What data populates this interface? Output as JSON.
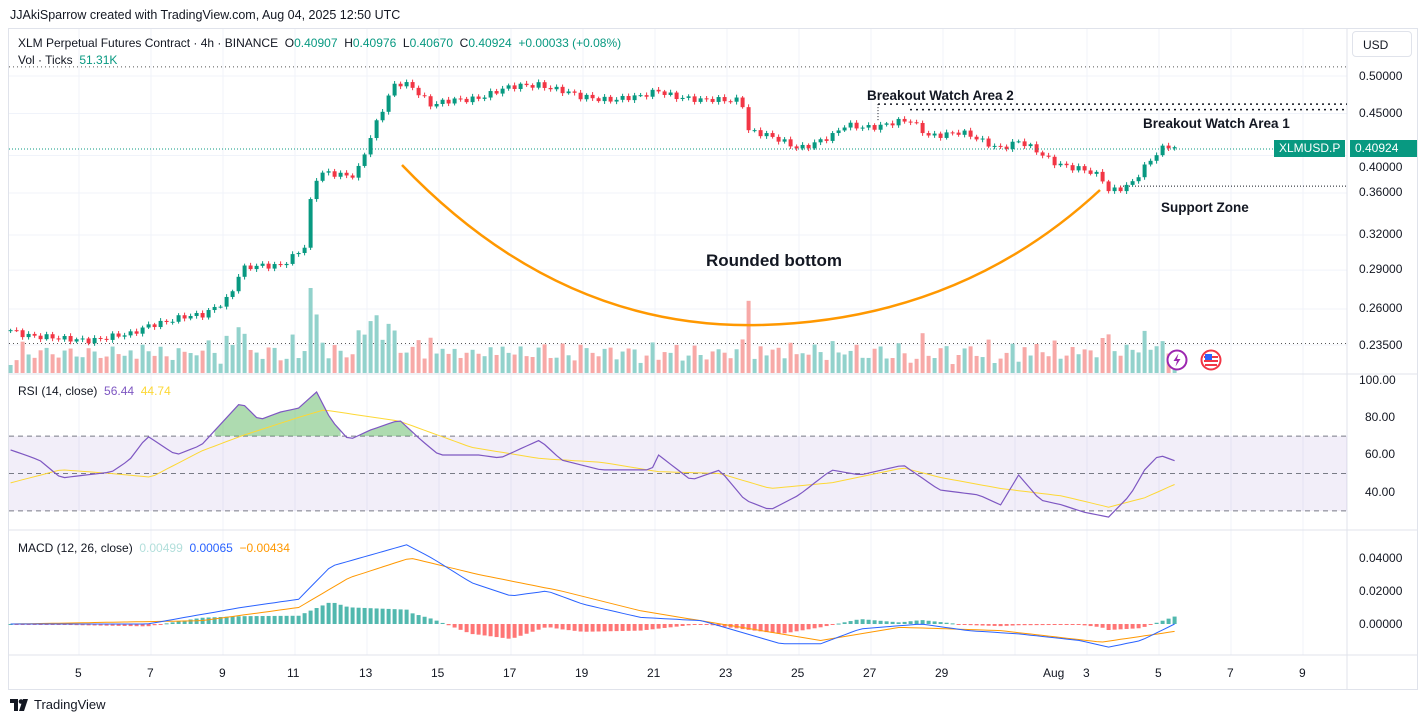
{
  "credit": "JJAkiSparrow created with TradingView.com, Aug 04, 2025 12:50 UTC",
  "legend": {
    "symbol": "XLM Perpetual Futures Contract · 4h · BINANCE",
    "o_label": "O",
    "o": "0.40907",
    "h_label": "H",
    "h": "0.40976",
    "l_label": "L",
    "l": "0.40670",
    "c_label": "C",
    "c": "0.40924",
    "change": "+0.00033 (+0.08%)",
    "vol_label": "Vol · Ticks",
    "vol": "51.31K"
  },
  "currency": "USD",
  "price_axis": [
    "0.50000",
    "0.45000",
    "0.40000",
    "0.36000",
    "0.32000",
    "0.29000",
    "0.26000",
    "0.23500"
  ],
  "price_tag": {
    "symbol": "XLMUSD.P",
    "price": "0.40924"
  },
  "annotations": {
    "breakout2": "Breakout Watch Area 2",
    "breakout1": "Breakout Watch Area 1",
    "support": "Support Zone",
    "pattern": "Rounded bottom"
  },
  "rsi": {
    "label": "RSI (14, close)",
    "value": "56.44",
    "ma": "44.74",
    "axis": [
      "100.00",
      "80.00",
      "60.00",
      "40.00"
    ]
  },
  "macd": {
    "label": "MACD (12, 26, close)",
    "hist": "0.00499",
    "macd": "0.00065",
    "signal": "−0.00434",
    "axis": [
      "0.04000",
      "0.02000",
      "0.00000"
    ]
  },
  "time_axis": [
    "5",
    "7",
    "9",
    "11",
    "13",
    "15",
    "17",
    "19",
    "21",
    "23",
    "25",
    "27",
    "29",
    "Aug",
    "3",
    "5",
    "7",
    "9"
  ],
  "brand": "TradingView",
  "colors": {
    "up": "#089981",
    "down": "#f23645",
    "rsi": "#7e57c2",
    "rsi_ma": "#fdd835",
    "macd": "#2962ff",
    "signal": "#ff9800",
    "curve": "#ff9800"
  },
  "chart_data": {
    "type": "candlestick",
    "x_unit": "day (July; 32 = Aug 1)",
    "price_keypoints": [
      [
        3.1,
        0.245
      ],
      [
        4.5,
        0.238
      ],
      [
        6.4,
        0.241
      ],
      [
        7.0,
        0.25
      ],
      [
        8.4,
        0.255
      ],
      [
        9.2,
        0.27
      ],
      [
        9.5,
        0.29
      ],
      [
        10.6,
        0.295
      ],
      [
        11.3,
        0.31
      ],
      [
        11.5,
        0.37
      ],
      [
        11.8,
        0.38
      ],
      [
        12.7,
        0.38
      ],
      [
        13.1,
        0.42
      ],
      [
        13.5,
        0.46
      ],
      [
        13.8,
        0.49
      ],
      [
        14.2,
        0.49
      ],
      [
        14.8,
        0.46
      ],
      [
        15.9,
        0.47
      ],
      [
        16.7,
        0.48
      ],
      [
        17.8,
        0.49
      ],
      [
        18.4,
        0.48
      ],
      [
        18.9,
        0.47
      ],
      [
        20.6,
        0.47
      ],
      [
        21.1,
        0.48
      ],
      [
        22.3,
        0.465
      ],
      [
        23.4,
        0.47
      ],
      [
        23.6,
        0.43
      ],
      [
        24.2,
        0.42
      ],
      [
        25.0,
        0.41
      ],
      [
        25.9,
        0.42
      ],
      [
        26.3,
        0.435
      ],
      [
        27.3,
        0.435
      ],
      [
        28.1,
        0.44
      ],
      [
        28.6,
        0.425
      ],
      [
        29.5,
        0.425
      ],
      [
        30.6,
        0.41
      ],
      [
        31.1,
        0.415
      ],
      [
        32.0,
        0.395
      ],
      [
        32.8,
        0.385
      ],
      [
        33.4,
        0.375
      ],
      [
        33.6,
        0.362
      ],
      [
        34.2,
        0.37
      ],
      [
        34.8,
        0.395
      ],
      [
        35.2,
        0.41
      ],
      [
        35.5,
        0.409
      ]
    ],
    "rsi_keypoints": [
      [
        3.1,
        62.6
      ],
      [
        3.9,
        57.2
      ],
      [
        4.5,
        47.6
      ],
      [
        5.9,
        50.8
      ],
      [
        6.4,
        57.2
      ],
      [
        6.9,
        70
      ],
      [
        7.7,
        59.9
      ],
      [
        8.4,
        65.2
      ],
      [
        9.5,
        88.2
      ],
      [
        10.0,
        78.6
      ],
      [
        10.6,
        82.9
      ],
      [
        11.1,
        85
      ],
      [
        11.6,
        93.6
      ],
      [
        12.0,
        78.6
      ],
      [
        12.5,
        67.9
      ],
      [
        13.1,
        73.3
      ],
      [
        13.9,
        78.6
      ],
      [
        14.5,
        67.9
      ],
      [
        15.0,
        59.9
      ],
      [
        16.1,
        59.9
      ],
      [
        16.7,
        58.3
      ],
      [
        17.8,
        67.9
      ],
      [
        18.4,
        57.2
      ],
      [
        19.5,
        51.9
      ],
      [
        20.9,
        51.9
      ],
      [
        21.1,
        59.9
      ],
      [
        22.0,
        46.5
      ],
      [
        22.8,
        51.9
      ],
      [
        23.5,
        35.8
      ],
      [
        24.2,
        30.5
      ],
      [
        25.0,
        38.5
      ],
      [
        25.9,
        51.9
      ],
      [
        26.7,
        49.2
      ],
      [
        27.9,
        54.5
      ],
      [
        28.9,
        41.2
      ],
      [
        30.0,
        38.5
      ],
      [
        30.6,
        33.2
      ],
      [
        31.1,
        49.2
      ],
      [
        31.7,
        35.8
      ],
      [
        32.3,
        33.2
      ],
      [
        32.9,
        29.4
      ],
      [
        33.6,
        26.7
      ],
      [
        34.2,
        38.5
      ],
      [
        34.6,
        51.9
      ],
      [
        35.0,
        59.9
      ],
      [
        35.5,
        56.4
      ]
    ],
    "rsi_ma_keypoints": [
      [
        3.1,
        45
      ],
      [
        4.5,
        52
      ],
      [
        5.9,
        50
      ],
      [
        7.0,
        48
      ],
      [
        8.4,
        62
      ],
      [
        9.5,
        70
      ],
      [
        11.1,
        80
      ],
      [
        11.8,
        84
      ],
      [
        13.9,
        78
      ],
      [
        15.9,
        64
      ],
      [
        17.8,
        58
      ],
      [
        19.5,
        56
      ],
      [
        21.1,
        51
      ],
      [
        22.8,
        50
      ],
      [
        24.2,
        42
      ],
      [
        25.9,
        45
      ],
      [
        27.9,
        53
      ],
      [
        28.9,
        48
      ],
      [
        30.6,
        42
      ],
      [
        32.3,
        38
      ],
      [
        33.6,
        32
      ],
      [
        34.6,
        37
      ],
      [
        35.5,
        44.7
      ]
    ],
    "macd_keypoints": [
      [
        3.1,
        0
      ],
      [
        6.9,
        0
      ],
      [
        9.5,
        0.01
      ],
      [
        11.1,
        0.015
      ],
      [
        12.0,
        0.035
      ],
      [
        14.1,
        0.048
      ],
      [
        14.8,
        0.04
      ],
      [
        15.9,
        0.025
      ],
      [
        17.0,
        0.017
      ],
      [
        18.0,
        0.02
      ],
      [
        19.0,
        0.012
      ],
      [
        20.6,
        0.004
      ],
      [
        22.3,
        0.002
      ],
      [
        23.4,
        -0.005
      ],
      [
        24.5,
        -0.012
      ],
      [
        25.6,
        -0.012
      ],
      [
        26.7,
        -0.003
      ],
      [
        28.4,
        0
      ],
      [
        29.7,
        -0.004
      ],
      [
        31.1,
        -0.006
      ],
      [
        32.8,
        -0.01
      ],
      [
        33.6,
        -0.014
      ],
      [
        34.5,
        -0.01
      ],
      [
        35.5,
        0.0007
      ]
    ],
    "signal_keypoints": [
      [
        3.1,
        0
      ],
      [
        8.4,
        0.002
      ],
      [
        11.1,
        0.01
      ],
      [
        12.5,
        0.028
      ],
      [
        14.2,
        0.04
      ],
      [
        16.1,
        0.03
      ],
      [
        18.4,
        0.02
      ],
      [
        20.6,
        0.008
      ],
      [
        23.4,
        -0.002
      ],
      [
        25.6,
        -0.01
      ],
      [
        27.8,
        -0.002
      ],
      [
        30.6,
        -0.004
      ],
      [
        33.4,
        -0.011
      ],
      [
        35.5,
        -0.0043
      ]
    ],
    "levels": {
      "breakout_area_2": 0.462,
      "breakout_area_1": 0.455,
      "support": 0.367,
      "top": 0.513,
      "bottom": 0.236
    }
  }
}
